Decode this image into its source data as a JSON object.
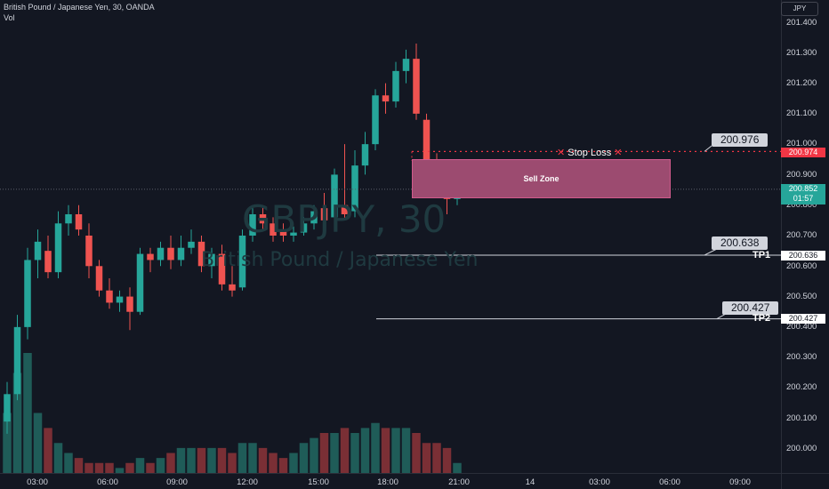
{
  "header": {
    "title": "British Pound / Japanese Yen, 30, OANDA",
    "volume_label": "Vol"
  },
  "watermark": {
    "symbol": "GBPJPY, 30",
    "name": "British Pound / Japanese Yen"
  },
  "currency_badge": "JPY",
  "price_axis": {
    "ticks": [
      "201.400",
      "201.300",
      "201.200",
      "201.100",
      "201.000",
      "200.900",
      "200.800",
      "200.700",
      "200.600",
      "200.500",
      "200.400",
      "200.300",
      "200.200",
      "200.100",
      "200.000"
    ]
  },
  "time_axis": {
    "ticks": [
      "03:00",
      "06:00",
      "09:00",
      "12:00",
      "15:00",
      "18:00",
      "21:00",
      "14",
      "03:00",
      "06:00",
      "09:00"
    ]
  },
  "price_tags": {
    "stop_loss": "200.974",
    "current_price": "200.852",
    "countdown": "01:57",
    "tp1": "200.636",
    "tp2": "200.427"
  },
  "callouts": {
    "stop_loss": "200.976",
    "tp1": "200.638",
    "tp2": "200.427"
  },
  "annotations": {
    "stop_loss_label": "Stop Loss",
    "sell_zone_label": "Sell Zone",
    "tp1_label": "TP1",
    "tp2_label": "TP2"
  },
  "colors": {
    "up": "#26a69a",
    "down": "#ef5350",
    "vol_up": "#1f5c58",
    "vol_down": "#7a2f35",
    "stop_loss": "#f23645",
    "current": "#26a69a",
    "sell_zone": "#9c4b70"
  },
  "chart_data": {
    "type": "candlestick",
    "title": "British Pound / Japanese Yen, 30, OANDA",
    "ylim": [
      199.95,
      201.45
    ],
    "candles": [
      {
        "o": 200.09,
        "h": 200.22,
        "c": 200.18,
        "l": 200.05
      },
      {
        "o": 200.18,
        "h": 200.44,
        "c": 200.4,
        "l": 200.16
      },
      {
        "o": 200.4,
        "h": 200.66,
        "c": 200.62,
        "l": 200.36
      },
      {
        "o": 200.62,
        "h": 200.72,
        "c": 200.68,
        "l": 200.56
      },
      {
        "o": 200.65,
        "h": 200.7,
        "c": 200.58,
        "l": 200.56
      },
      {
        "o": 200.58,
        "h": 200.78,
        "c": 200.74,
        "l": 200.56
      },
      {
        "o": 200.74,
        "h": 200.8,
        "c": 200.77,
        "l": 200.7
      },
      {
        "o": 200.77,
        "h": 200.8,
        "c": 200.72,
        "l": 200.7
      },
      {
        "o": 200.7,
        "h": 200.74,
        "c": 200.6,
        "l": 200.56
      },
      {
        "o": 200.6,
        "h": 200.62,
        "c": 200.52,
        "l": 200.5
      },
      {
        "o": 200.52,
        "h": 200.56,
        "c": 200.48,
        "l": 200.46
      },
      {
        "o": 200.48,
        "h": 200.52,
        "c": 200.5,
        "l": 200.45
      },
      {
        "o": 200.5,
        "h": 200.53,
        "c": 200.45,
        "l": 200.39
      },
      {
        "o": 200.45,
        "h": 200.66,
        "c": 200.64,
        "l": 200.44
      },
      {
        "o": 200.64,
        "h": 200.66,
        "c": 200.62,
        "l": 200.58
      },
      {
        "o": 200.62,
        "h": 200.68,
        "c": 200.66,
        "l": 200.6
      },
      {
        "o": 200.66,
        "h": 200.7,
        "c": 200.62,
        "l": 200.59
      },
      {
        "o": 200.62,
        "h": 200.7,
        "c": 200.66,
        "l": 200.6
      },
      {
        "o": 200.66,
        "h": 200.72,
        "c": 200.68,
        "l": 200.64
      },
      {
        "o": 200.68,
        "h": 200.7,
        "c": 200.6,
        "l": 200.58
      },
      {
        "o": 200.6,
        "h": 200.66,
        "c": 200.64,
        "l": 200.56
      },
      {
        "o": 200.64,
        "h": 200.67,
        "c": 200.54,
        "l": 200.52
      },
      {
        "o": 200.54,
        "h": 200.6,
        "c": 200.52,
        "l": 200.5
      },
      {
        "o": 200.53,
        "h": 200.72,
        "c": 200.7,
        "l": 200.52
      },
      {
        "o": 200.7,
        "h": 200.79,
        "c": 200.77,
        "l": 200.68
      },
      {
        "o": 200.77,
        "h": 200.8,
        "c": 200.74,
        "l": 200.72
      },
      {
        "o": 200.74,
        "h": 200.76,
        "c": 200.7,
        "l": 200.68
      },
      {
        "o": 200.72,
        "h": 200.74,
        "c": 200.7,
        "l": 200.68
      },
      {
        "o": 200.7,
        "h": 200.73,
        "c": 200.71,
        "l": 200.68
      },
      {
        "o": 200.71,
        "h": 200.76,
        "c": 200.74,
        "l": 200.7
      },
      {
        "o": 200.74,
        "h": 200.8,
        "c": 200.78,
        "l": 200.72
      },
      {
        "o": 200.79,
        "h": 200.84,
        "c": 200.75,
        "l": 200.73
      },
      {
        "o": 200.76,
        "h": 200.92,
        "c": 200.9,
        "l": 200.75
      },
      {
        "o": 200.8,
        "h": 201.0,
        "c": 200.77,
        "l": 200.75
      },
      {
        "o": 200.78,
        "h": 200.98,
        "c": 200.93,
        "l": 200.76
      },
      {
        "o": 200.93,
        "h": 201.04,
        "c": 201.0,
        "l": 200.9
      },
      {
        "o": 201.0,
        "h": 201.18,
        "c": 201.16,
        "l": 200.98
      },
      {
        "o": 201.16,
        "h": 201.2,
        "c": 201.14,
        "l": 201.1
      },
      {
        "o": 201.14,
        "h": 201.27,
        "c": 201.24,
        "l": 201.12
      },
      {
        "o": 201.24,
        "h": 201.31,
        "c": 201.28,
        "l": 201.2
      },
      {
        "o": 201.28,
        "h": 201.33,
        "c": 201.1,
        "l": 201.08
      },
      {
        "o": 201.08,
        "h": 201.1,
        "c": 200.95,
        "l": 200.93
      },
      {
        "o": 200.95,
        "h": 200.97,
        "c": 200.94,
        "l": 200.86
      },
      {
        "o": 200.94,
        "h": 200.95,
        "c": 200.82,
        "l": 200.77
      },
      {
        "o": 200.82,
        "h": 200.88,
        "c": 200.85,
        "l": 200.8
      }
    ],
    "volume": [
      12,
      20,
      24,
      12,
      9,
      6,
      4,
      3,
      2,
      2,
      2,
      1,
      2,
      3,
      2,
      3,
      4,
      5,
      5,
      5,
      5,
      5,
      4,
      6,
      6,
      5,
      4,
      3,
      4,
      6,
      7,
      8,
      8,
      9,
      8,
      9,
      10,
      9,
      9,
      9,
      8,
      6,
      6,
      5,
      2
    ],
    "levels": {
      "stop_loss": 200.976,
      "sell_zone": [
        200.82,
        200.95
      ],
      "current": 200.852,
      "tp1": 200.636,
      "tp2": 200.427
    },
    "grid": false
  }
}
